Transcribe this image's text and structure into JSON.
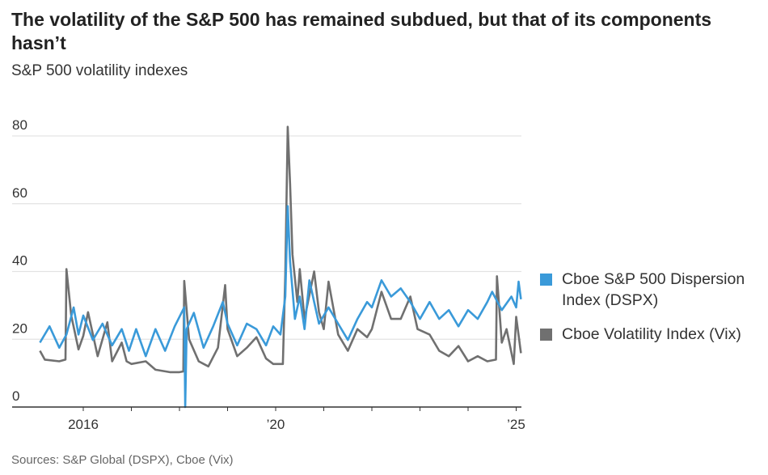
{
  "header": {
    "title": "The volatility of the S&P 500 has remained subdued, but that of its components hasn’t",
    "subtitle": "S&P 500 volatility indexes"
  },
  "footer": {
    "source": "Sources: S&P Global (DSPX), Cboe (Vix)"
  },
  "colors": {
    "dspx": "#3a9ad9",
    "vix": "#707070",
    "grid": "#e3e3e3",
    "axis": "#333333"
  },
  "chart_data": {
    "type": "line",
    "title": "The volatility of the S&P 500 has remained subdued, but that of its components hasn’t",
    "subtitle": "S&P 500 volatility indexes",
    "xlabel": "",
    "ylabel": "",
    "ylim": [
      0,
      80
    ],
    "xlim": [
      2015.1,
      2025.1
    ],
    "grid": true,
    "yticks": [
      {
        "value": 0,
        "label": "0"
      },
      {
        "value": 20,
        "label": "20"
      },
      {
        "value": 40,
        "label": "40"
      },
      {
        "value": 60,
        "label": "60"
      },
      {
        "value": 80,
        "label": "80"
      }
    ],
    "xticks": [
      {
        "value": 2016,
        "label": "2016"
      },
      {
        "value": 2017,
        "label": ""
      },
      {
        "value": 2018,
        "label": ""
      },
      {
        "value": 2019,
        "label": ""
      },
      {
        "value": 2020,
        "label": "’20"
      },
      {
        "value": 2021,
        "label": ""
      },
      {
        "value": 2022,
        "label": ""
      },
      {
        "value": 2023,
        "label": ""
      },
      {
        "value": 2024,
        "label": ""
      },
      {
        "value": 2025,
        "label": "’25"
      }
    ],
    "legend_position": "right",
    "series": [
      {
        "name": "Cboe Volatility Index (Vix)",
        "key": "vix",
        "x": [
          2015.1,
          2015.2,
          2015.5,
          2015.63,
          2015.65,
          2015.75,
          2015.9,
          2016.0,
          2016.1,
          2016.3,
          2016.5,
          2016.6,
          2016.8,
          2016.9,
          2017.0,
          2017.3,
          2017.5,
          2017.8,
          2018.0,
          2018.08,
          2018.1,
          2018.2,
          2018.4,
          2018.6,
          2018.8,
          2018.95,
          2019.0,
          2019.2,
          2019.4,
          2019.6,
          2019.8,
          2019.95,
          2020.15,
          2020.2,
          2020.25,
          2020.3,
          2020.35,
          2020.45,
          2020.5,
          2020.6,
          2020.8,
          2020.9,
          2021.0,
          2021.1,
          2021.3,
          2021.5,
          2021.7,
          2021.9,
          2022.0,
          2022.2,
          2022.4,
          2022.6,
          2022.8,
          2022.95,
          2023.2,
          2023.4,
          2023.6,
          2023.8,
          2024.0,
          2024.2,
          2024.4,
          2024.58,
          2024.6,
          2024.7,
          2024.8,
          2024.95,
          2025.0,
          2025.1
        ],
        "values": [
          16.6,
          14,
          13.5,
          14,
          40.7,
          27,
          17,
          21,
          28,
          15,
          25,
          13.5,
          19,
          13.5,
          12.7,
          13.5,
          11,
          10.3,
          10.3,
          10.5,
          37.2,
          20,
          13.5,
          12,
          17.5,
          36,
          23,
          15,
          17.5,
          20.6,
          14.3,
          12.7,
          12.7,
          39,
          82.7,
          66,
          45,
          31,
          40.7,
          26,
          40,
          28,
          23,
          37,
          21.4,
          16.6,
          23,
          20.6,
          23,
          34,
          26,
          26,
          32.6,
          23,
          21.4,
          16.6,
          15,
          18,
          13.5,
          15,
          13.5,
          14,
          38.6,
          19,
          23,
          12.7,
          26.6,
          15.9
        ]
      },
      {
        "name": "Cboe S&P 500 Dispersion Index (DSPX)",
        "key": "dspx",
        "x": [
          2015.1,
          2015.3,
          2015.5,
          2015.65,
          2015.8,
          2015.9,
          2016.0,
          2016.2,
          2016.4,
          2016.6,
          2016.8,
          2016.95,
          2017.1,
          2017.3,
          2017.5,
          2017.7,
          2017.9,
          2018.1,
          2018.12,
          2018.15,
          2018.3,
          2018.5,
          2018.7,
          2018.9,
          2019.0,
          2019.2,
          2019.4,
          2019.6,
          2019.8,
          2019.95,
          2020.1,
          2020.2,
          2020.25,
          2020.3,
          2020.4,
          2020.5,
          2020.6,
          2020.7,
          2020.8,
          2020.9,
          2021.1,
          2021.3,
          2021.5,
          2021.7,
          2021.9,
          2022.0,
          2022.2,
          2022.4,
          2022.6,
          2022.8,
          2023.0,
          2023.2,
          2023.4,
          2023.6,
          2023.8,
          2024.0,
          2024.2,
          2024.4,
          2024.5,
          2024.7,
          2024.9,
          2025.0,
          2025.05,
          2025.1
        ],
        "values": [
          19,
          23.8,
          17.5,
          21.4,
          29.4,
          21.4,
          27,
          19.8,
          24.6,
          18.2,
          23,
          16.6,
          23,
          15,
          23,
          16.6,
          23.8,
          29.4,
          0,
          23,
          27.8,
          17.5,
          23.8,
          31,
          24.6,
          18.2,
          24.6,
          23,
          18.2,
          23.8,
          21.4,
          32.6,
          59.3,
          43,
          26,
          32.6,
          23,
          37.4,
          31,
          24.6,
          29.4,
          24.6,
          19.8,
          26,
          31,
          29.4,
          37.4,
          32.6,
          35,
          31,
          26,
          31,
          26,
          28.6,
          23.8,
          28.6,
          26,
          31,
          34,
          28.6,
          32.6,
          29.4,
          37,
          31.8
        ]
      }
    ]
  }
}
